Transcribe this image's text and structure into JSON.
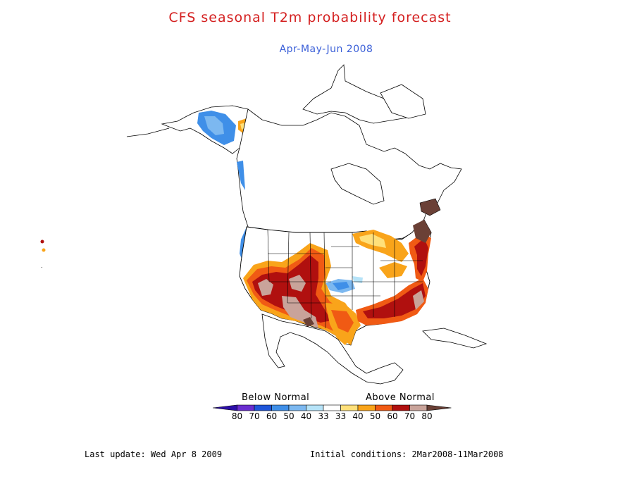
{
  "title": "CFS seasonal T2m probability forecast",
  "subtitle": "Apr-May-Jun 2008",
  "colors": {
    "title": "#d42020",
    "subtitle": "#3a5fd8",
    "land_outline": "#000000",
    "water": "#ffffff"
  },
  "legend": {
    "below_label": "Below Normal",
    "above_label": "Above Normal",
    "swatches": [
      {
        "color": "#2c0fa8",
        "value": "80"
      },
      {
        "color": "#6a2ed0",
        "value": "70"
      },
      {
        "color": "#1f56d9",
        "value": "60"
      },
      {
        "color": "#3f8fe8",
        "value": "50"
      },
      {
        "color": "#7cb8f0",
        "value": "40"
      },
      {
        "color": "#b6e3f8",
        "value": "33"
      },
      {
        "color": "#ffffff",
        "value": "33"
      },
      {
        "color": "#ffe07a",
        "value": "40"
      },
      {
        "color": "#f9a41a",
        "value": "50"
      },
      {
        "color": "#f05a14",
        "value": "60"
      },
      {
        "color": "#b0100f",
        "value": "70"
      },
      {
        "color": "#c9a39a",
        "value": "80"
      },
      {
        "color": "#6a4036",
        "value": ""
      }
    ]
  },
  "footer": {
    "last_update": "Last update: Wed Apr 8 2009",
    "initial_conditions": "Initial conditions: 2Mar2008-11Mar2008"
  },
  "map_features": {
    "anomaly_regions": [
      {
        "region": "Alaska",
        "category": "below",
        "level": "50"
      },
      {
        "region": "Pacific Northwest coast",
        "category": "below",
        "level": "50"
      },
      {
        "region": "Southwest US",
        "category": "above",
        "level": "70"
      },
      {
        "region": "Texas / Gulf Coast",
        "category": "above",
        "level": "60"
      },
      {
        "region": "Southeast US",
        "category": "above",
        "level": "70"
      },
      {
        "region": "Great Lakes",
        "category": "above",
        "level": "50"
      },
      {
        "region": "Northeast US",
        "category": "above",
        "level": "80"
      },
      {
        "region": "Kansas",
        "category": "below",
        "level": "40"
      }
    ]
  }
}
